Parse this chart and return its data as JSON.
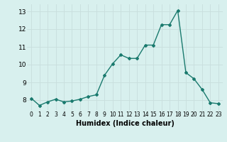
{
  "x": [
    0,
    1,
    2,
    3,
    4,
    5,
    6,
    7,
    8,
    9,
    10,
    11,
    12,
    13,
    14,
    15,
    16,
    17,
    18,
    19,
    20,
    21,
    22,
    23
  ],
  "y": [
    8.1,
    7.7,
    7.9,
    8.05,
    7.9,
    7.95,
    8.05,
    8.2,
    8.3,
    9.4,
    10.05,
    10.55,
    10.35,
    10.35,
    11.1,
    11.1,
    12.25,
    12.25,
    13.05,
    9.55,
    9.2,
    8.6,
    7.85,
    7.8
  ],
  "line_color": "#1a7a6e",
  "marker": "D",
  "marker_size": 2,
  "line_width": 1.0,
  "xlabel": "Humidex (Indice chaleur)",
  "xlabel_fontsize": 7,
  "xlim": [
    -0.5,
    23.5
  ],
  "ylim": [
    7.4,
    13.4
  ],
  "yticks": [
    8,
    9,
    10,
    11,
    12,
    13
  ],
  "xticks": [
    0,
    1,
    2,
    3,
    4,
    5,
    6,
    7,
    8,
    9,
    10,
    11,
    12,
    13,
    14,
    15,
    16,
    17,
    18,
    19,
    20,
    21,
    22,
    23
  ],
  "xtick_fontsize": 5.5,
  "ytick_fontsize": 6.5,
  "bg_color": "#d8f0ee",
  "grid_color": "#c8dedd",
  "grid_linewidth": 0.6
}
